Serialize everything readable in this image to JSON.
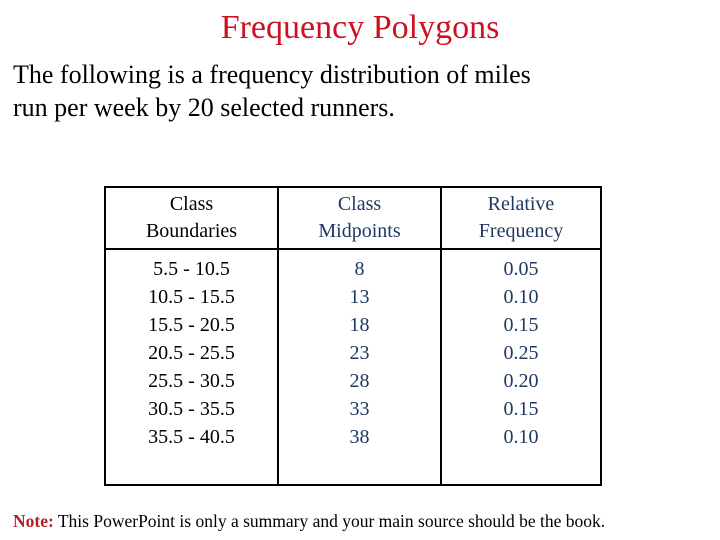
{
  "title": {
    "text": "Frequency Polygons"
  },
  "intro": {
    "line1": "The following is a frequency distribution of miles",
    "line2": "run per week by 20 selected runners."
  },
  "table": {
    "columns": [
      {
        "header": "Class\nBoundaries",
        "values": [
          "5.5 - 10.5",
          "10.5 - 15.5",
          "15.5 - 20.5",
          "20.5 - 25.5",
          "25.5 - 30.5",
          "30.5 - 35.5",
          "35.5 - 40.5"
        ]
      },
      {
        "header": "Class\nMidpoints",
        "values": [
          "8",
          "13",
          "18",
          "23",
          "28",
          "33",
          "38"
        ]
      },
      {
        "header": "Relative\nFrequency",
        "values": [
          "0.05",
          "0.10",
          "0.15",
          "0.25",
          "0.20",
          "0.15",
          "0.10"
        ]
      }
    ]
  },
  "note": {
    "label": "Note:",
    "text": " This PowerPoint is only a summary and your main source should be the book."
  },
  "colors": {
    "title_red": "#CC1122",
    "note_red": "#B02025",
    "navy": "#1F3864",
    "border": "#000000",
    "background": "#FFFFFF"
  }
}
